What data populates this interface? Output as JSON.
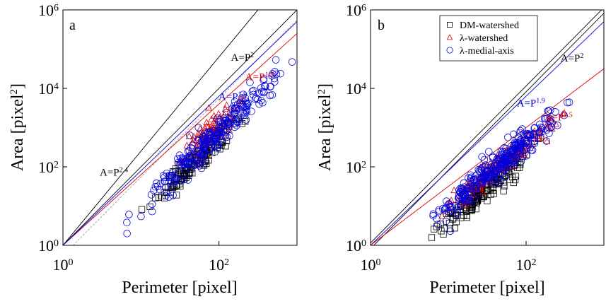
{
  "chart_data": [
    {
      "type": "scatter",
      "panel_label": "a",
      "xlabel": "Perimeter [pixel]",
      "ylabel": "Area [pixel",
      "ylabel_sup": "2",
      "ylabel_close": "]",
      "x_scale": "log",
      "y_scale": "log",
      "xlim": [
        1,
        1000
      ],
      "ylim": [
        1,
        1000000
      ],
      "x_ticks": [
        {
          "value": 1,
          "base": "10",
          "exp": "0"
        },
        {
          "value": 100,
          "base": "10",
          "exp": "2"
        }
      ],
      "y_ticks": [
        {
          "value": 1,
          "base": "10",
          "exp": "0"
        },
        {
          "value": 100,
          "base": "10",
          "exp": "2"
        },
        {
          "value": 10000,
          "base": "10",
          "exp": "4"
        },
        {
          "value": 1000000,
          "base": "10",
          "exp": "6"
        }
      ],
      "grid": false,
      "power_lines": [
        {
          "exponent": 2.4,
          "color": "#000000",
          "style": "solid",
          "label_base": "A=P",
          "label_exp": "2.4",
          "label_x": 4.5,
          "label_y": 60
        },
        {
          "exponent": 2.0,
          "color": "#000000",
          "style": "solid",
          "label_base": "A=P",
          "label_exp": "2",
          "label_x": 200,
          "label_y": 50000
        },
        {
          "exponent": 2.0,
          "color": "#999999",
          "style": "dashed",
          "coef": 0.55
        },
        {
          "exponent": 1.8,
          "color": "#dd0000",
          "style": "solid",
          "label_base": "A=P",
          "label_exp": "1.8",
          "label_x": 330,
          "label_y": 16000
        },
        {
          "exponent": 1.9,
          "color": "#0000dd",
          "style": "solid",
          "label_base": "A=P",
          "label_exp": "1.9",
          "label_x": 150,
          "label_y": 5000
        }
      ],
      "series": [
        {
          "marker": "square",
          "color": "#000000",
          "x_range": [
            7,
            240
          ],
          "exponent": 1.85,
          "log_coef": -1.0,
          "spread": 0.18,
          "count": 140
        },
        {
          "marker": "triangle",
          "color": "#dd0000",
          "x_range": [
            25,
            220
          ],
          "exponent": 1.8,
          "log_coef": -0.55,
          "spread": 0.18,
          "count": 90
        },
        {
          "marker": "circle",
          "color": "#0000dd",
          "x_range": [
            5,
            900
          ],
          "exponent": 1.9,
          "log_coef": -0.9,
          "spread": 0.2,
          "count": 260
        }
      ]
    },
    {
      "type": "scatter",
      "panel_label": "b",
      "xlabel": "Perimeter [pixel]",
      "ylabel": "Area [pixel",
      "ylabel_sup": "2",
      "ylabel_close": "]",
      "x_scale": "log",
      "y_scale": "log",
      "xlim": [
        1,
        1000
      ],
      "ylim": [
        1,
        1000000
      ],
      "x_ticks": [
        {
          "value": 1,
          "base": "10",
          "exp": "0"
        },
        {
          "value": 100,
          "base": "10",
          "exp": "2"
        }
      ],
      "y_ticks": [
        {
          "value": 1,
          "base": "10",
          "exp": "0"
        },
        {
          "value": 100,
          "base": "10",
          "exp": "2"
        },
        {
          "value": 10000,
          "base": "10",
          "exp": "4"
        },
        {
          "value": 1000000,
          "base": "10",
          "exp": "6"
        }
      ],
      "grid": false,
      "legend_position": "top-right",
      "legend": [
        {
          "marker": "square",
          "color": "#000000",
          "label": "DM-watershed"
        },
        {
          "marker": "triangle",
          "color": "#dd0000",
          "label": "λ-watershed"
        },
        {
          "marker": "circle",
          "color": "#0000dd",
          "label": "λ-medial-axis"
        }
      ],
      "power_lines": [
        {
          "exponent": 2.0,
          "color": "#000000",
          "style": "solid",
          "coef": 1.15,
          "label_base": "A=P",
          "label_exp": "2",
          "label_x": 390,
          "label_y": 48000
        },
        {
          "exponent": 2.0,
          "color": "#000000",
          "style": "solid",
          "coef": 0.82
        },
        {
          "exponent": 1.9,
          "color": "#0000dd",
          "style": "solid",
          "label_base": "A=P",
          "label_exp": "1.9",
          "label_x": 115,
          "label_y": 3500
        },
        {
          "exponent": 1.5,
          "color": "#dd0000",
          "style": "solid",
          "label_base": "A=P",
          "label_exp": "1.5",
          "label_x": 260,
          "label_y": 1500
        }
      ],
      "series": [
        {
          "marker": "square",
          "color": "#000000",
          "x_range": [
            4,
            160
          ],
          "exponent": 1.75,
          "log_coef": -1.15,
          "spread": 0.16,
          "count": 180
        },
        {
          "marker": "triangle",
          "color": "#dd0000",
          "x_range": [
            6,
            330
          ],
          "exponent": 1.6,
          "log_coef": -0.62,
          "spread": 0.15,
          "count": 160
        },
        {
          "marker": "circle",
          "color": "#0000dd",
          "x_range": [
            4,
            360
          ],
          "exponent": 1.68,
          "log_coef": -0.72,
          "spread": 0.17,
          "count": 320
        }
      ]
    }
  ]
}
